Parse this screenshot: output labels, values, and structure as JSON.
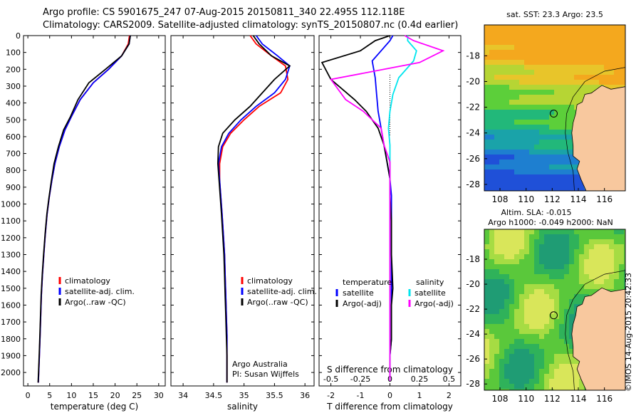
{
  "header": {
    "line1": "Argo profile: CS 5901675_247 07-Aug-2015 20150811_340 22.495S 112.118E",
    "line2": "Climatology: CARS2009. Satellite-adjusted climatology: synTS_20150807.nc (0.4d earlier)"
  },
  "credit": "©IMOS 14-Aug-2015 20:42:33",
  "colors": {
    "climatology": "#ff0000",
    "satellite": "#0000ff",
    "argo": "#000000",
    "cyan": "#00e5ee",
    "magenta": "#ff00ff",
    "land": "#f8c89e"
  },
  "chart_data": [
    {
      "id": "temperature",
      "type": "line",
      "xlabel": "temperature (deg C)",
      "ylabel": "",
      "xlim": [
        -1,
        31.5
      ],
      "ylim": [
        2080,
        0
      ],
      "xticks": [
        0,
        5,
        10,
        15,
        20,
        25,
        30
      ],
      "yticks": [
        0,
        100,
        200,
        300,
        400,
        500,
        600,
        700,
        800,
        900,
        1000,
        1100,
        1200,
        1300,
        1400,
        1500,
        1600,
        1700,
        1800,
        1900,
        2000
      ],
      "legend": [
        "climatology",
        "satellite-adj. clim.",
        "Argo(..raw -QC)"
      ],
      "series": [
        {
          "name": "climatology",
          "color": "#ff0000",
          "x": [
            23.3,
            23.0,
            21.5,
            18.5,
            15.0,
            12.0,
            10.0,
            8.5,
            7.2,
            6.2,
            5.5,
            4.9,
            4.4,
            4.0,
            3.65,
            3.35,
            3.1,
            2.95,
            2.8,
            2.65,
            2.5,
            2.4
          ],
          "y": [
            0,
            50,
            120,
            200,
            280,
            380,
            480,
            560,
            660,
            760,
            860,
            960,
            1060,
            1180,
            1300,
            1420,
            1540,
            1660,
            1780,
            1900,
            2000,
            2060
          ]
        },
        {
          "name": "satellite-adj. clim.",
          "color": "#0000ff",
          "x": [
            23.5,
            23.2,
            21.5,
            18.5,
            15.0,
            12.0,
            10.0,
            8.5,
            7.2,
            6.2,
            5.5,
            4.9,
            4.4,
            4.0,
            3.65,
            3.35,
            3.1,
            2.95,
            2.8,
            2.65,
            2.5,
            2.4
          ],
          "y": [
            0,
            50,
            120,
            200,
            280,
            380,
            480,
            560,
            660,
            760,
            860,
            960,
            1060,
            1180,
            1300,
            1420,
            1540,
            1660,
            1780,
            1900,
            2000,
            2060
          ]
        },
        {
          "name": "Argo(..raw -QC)",
          "color": "#000000",
          "x": [
            23.5,
            23.2,
            21.5,
            17.8,
            14.0,
            11.5,
            9.8,
            8.2,
            7.0,
            6.0,
            5.4,
            4.85,
            4.35,
            3.95,
            3.6,
            3.3,
            3.05,
            2.9,
            2.75,
            2.6,
            2.45,
            2.35
          ],
          "y": [
            0,
            50,
            120,
            200,
            280,
            380,
            480,
            560,
            660,
            760,
            860,
            960,
            1060,
            1180,
            1300,
            1420,
            1540,
            1660,
            1780,
            1900,
            2000,
            2060
          ]
        }
      ]
    },
    {
      "id": "salinity",
      "type": "line",
      "xlabel": "salinity",
      "xlim": [
        33.8,
        36.15
      ],
      "ylim": [
        2080,
        0
      ],
      "xticks": [
        34,
        34.5,
        35,
        35.5,
        36
      ],
      "legend": [
        "climatology",
        "satellite-adj. clim.",
        "Argo(..raw -QC)"
      ],
      "annotation": [
        "Argo Australia",
        "PI: Susan Wijffels"
      ],
      "series": [
        {
          "name": "climatology",
          "color": "#ff0000",
          "x": [
            35.1,
            35.2,
            35.45,
            35.68,
            35.72,
            35.6,
            35.25,
            35.0,
            34.78,
            34.65,
            34.6,
            34.6,
            34.62,
            34.64,
            34.66,
            34.68,
            34.69,
            34.7,
            34.71,
            34.72,
            34.72,
            34.72
          ],
          "y": [
            0,
            50,
            120,
            180,
            260,
            340,
            420,
            500,
            580,
            660,
            760,
            860,
            960,
            1060,
            1180,
            1300,
            1420,
            1540,
            1660,
            1780,
            1900,
            2060
          ]
        },
        {
          "name": "satellite-adj. clim.",
          "color": "#0000ff",
          "x": [
            35.2,
            35.3,
            35.55,
            35.75,
            35.68,
            35.5,
            35.2,
            34.95,
            34.75,
            34.63,
            34.58,
            34.6,
            34.62,
            34.64,
            34.66,
            34.68,
            34.69,
            34.7,
            34.71,
            34.72,
            34.72,
            34.72
          ],
          "y": [
            0,
            50,
            120,
            180,
            260,
            340,
            420,
            500,
            580,
            660,
            760,
            860,
            960,
            1060,
            1180,
            1300,
            1420,
            1540,
            1660,
            1780,
            1900,
            2060
          ]
        },
        {
          "name": "Argo(..raw -QC)",
          "color": "#000000",
          "x": [
            35.15,
            35.25,
            35.45,
            35.75,
            35.5,
            35.3,
            35.1,
            34.85,
            34.65,
            34.58,
            34.57,
            34.59,
            34.61,
            34.63,
            34.65,
            34.67,
            34.68,
            34.69,
            34.7,
            34.71,
            34.72,
            34.72
          ],
          "y": [
            0,
            50,
            120,
            180,
            260,
            340,
            420,
            500,
            580,
            660,
            760,
            860,
            960,
            1060,
            1180,
            1300,
            1420,
            1540,
            1660,
            1780,
            1900,
            2060
          ]
        }
      ]
    },
    {
      "id": "difference",
      "type": "line",
      "xlabel": "T difference from climatology",
      "toplabel": "S difference from climatology",
      "xlim": [
        -2.4,
        2.4
      ],
      "ylim": [
        2080,
        0
      ],
      "xticks": [
        -2,
        -1,
        0,
        1,
        2
      ],
      "sticks": [
        "-0.5",
        "-0.25",
        "0",
        "0.25",
        "0.5"
      ],
      "sticks_pos": [
        -2,
        -1,
        0,
        1,
        2
      ],
      "legend_t": {
        "title": "temperature",
        "items": [
          "satellite",
          "Argo(-adj)"
        ]
      },
      "legend_s": {
        "title": "salinity",
        "items": [
          "satellite",
          "Argo(-adj)"
        ]
      },
      "series": [
        {
          "name": "T satellite",
          "color": "#0000ff",
          "x": [
            0.1,
            0.0,
            -0.3,
            -0.6,
            -0.5,
            -0.45,
            -0.4,
            -0.3,
            -0.2,
            -0.1,
            0.0,
            0.05,
            0.05,
            0.05,
            0.05,
            0.05,
            0.05,
            0.05,
            0.0,
            0.0,
            0.0
          ],
          "y": [
            0,
            30,
            90,
            150,
            250,
            350,
            450,
            550,
            650,
            750,
            850,
            950,
            1100,
            1300,
            1500,
            1600,
            1700,
            1800,
            1900,
            2000,
            2050
          ]
        },
        {
          "name": "T Argo(-adj)",
          "color": "#000000",
          "x": [
            0.0,
            -0.5,
            -1.0,
            -2.3,
            -2.0,
            -1.2,
            -0.8,
            -0.4,
            -0.2,
            -0.1,
            0.0,
            0.0,
            0.05,
            0.05,
            0.1,
            0.05,
            0.05,
            0.05,
            0.0,
            0.0,
            0.0
          ],
          "y": [
            0,
            30,
            90,
            160,
            260,
            380,
            450,
            550,
            650,
            750,
            850,
            950,
            1100,
            1300,
            1500,
            1600,
            1700,
            1800,
            1900,
            2000,
            2050
          ]
        },
        {
          "name": "S satellite",
          "color": "#00e5ee",
          "x": [
            0.6,
            0.6,
            0.9,
            0.8,
            0.3,
            0.1,
            0.0,
            -0.05,
            0.0,
            0.0,
            0.0,
            0.0,
            0.0,
            0.0,
            0.0,
            0.0,
            0.0,
            0.0,
            0.0,
            0.0,
            0.0
          ],
          "y": [
            0,
            30,
            90,
            150,
            250,
            350,
            450,
            550,
            650,
            750,
            850,
            950,
            1100,
            1300,
            1500,
            1600,
            1700,
            1800,
            1900,
            2000,
            2050
          ]
        },
        {
          "name": "S Argo(-adj)",
          "color": "#ff00ff",
          "x": [
            0.5,
            0.8,
            1.8,
            1.0,
            -2.0,
            -1.5,
            -0.9,
            -0.3,
            -0.2,
            0.0,
            0.0,
            0.0,
            0.0,
            0.0,
            0.0,
            0.0,
            0.0,
            0.0,
            0.0,
            0.0,
            0.0
          ],
          "y": [
            0,
            30,
            90,
            160,
            260,
            380,
            450,
            550,
            650,
            750,
            850,
            950,
            1100,
            1300,
            1500,
            1600,
            1700,
            1800,
            1900,
            2000,
            2050
          ]
        }
      ]
    },
    {
      "id": "sst-map",
      "type": "heatmap",
      "title": "sat. SST: 23.3 Argo: 23.5",
      "xlim": [
        106.8,
        117.6
      ],
      "ylim": [
        -28.5,
        -15.6
      ],
      "xticks": [
        108,
        110,
        112,
        114,
        116
      ],
      "yticks": [
        -18,
        -20,
        -22,
        -24,
        -26,
        -28
      ],
      "argo_position": [
        112.118,
        -22.495
      ]
    },
    {
      "id": "sla-map",
      "type": "heatmap",
      "title_line1": "Altim. SLA: -0.015",
      "title_line2": "Argo h1000: -0.049 h2000: NaN",
      "xlim": [
        106.8,
        117.6
      ],
      "ylim": [
        -28.5,
        -15.6
      ],
      "xticks": [
        108,
        110,
        112,
        114,
        116
      ],
      "yticks": [
        -18,
        -20,
        -22,
        -24,
        -26,
        -28
      ],
      "argo_position": [
        112.118,
        -22.495
      ]
    }
  ]
}
